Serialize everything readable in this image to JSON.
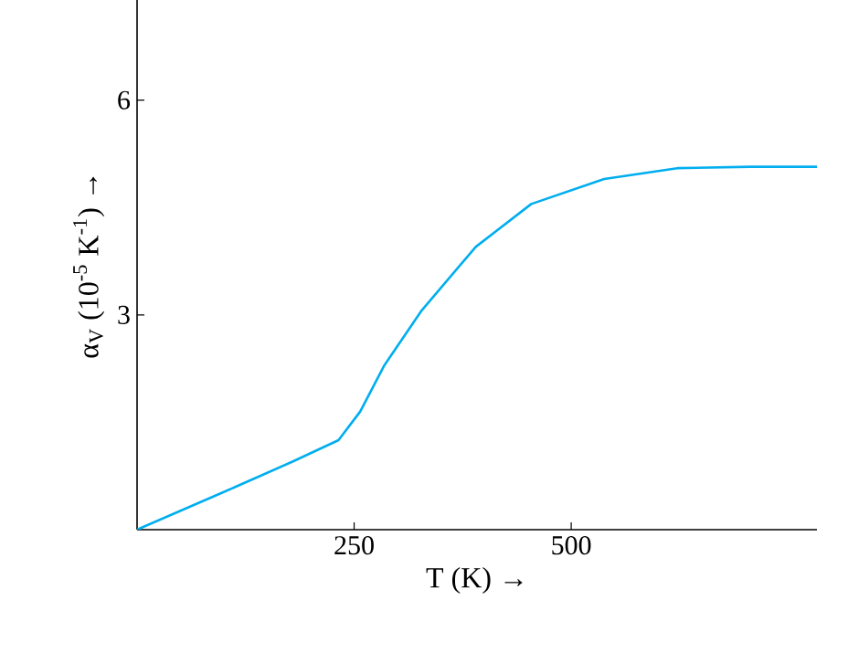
{
  "chart_data": {
    "type": "line",
    "xlabel": "T  (K) →",
    "ylabel": "α$_{V}$ (10$^{-5}$ K$^{-1}$) →",
    "xlim": [
      0,
      783
    ],
    "ylim": [
      0,
      7.4
    ],
    "xticks": [
      250,
      500
    ],
    "yticks": [
      3,
      6
    ],
    "grid": false,
    "marker": "none",
    "line_style": "solid",
    "series": [
      {
        "color": "#00aeef",
        "x": [
          0,
          95,
          179,
          232,
          257,
          285,
          327,
          390,
          454,
          538,
          622,
          707,
          783
        ],
        "values": [
          0,
          0.5,
          0.95,
          1.25,
          1.65,
          2.3,
          3.05,
          3.95,
          4.55,
          4.9,
          5.05,
          5.07,
          5.07
        ]
      }
    ]
  }
}
